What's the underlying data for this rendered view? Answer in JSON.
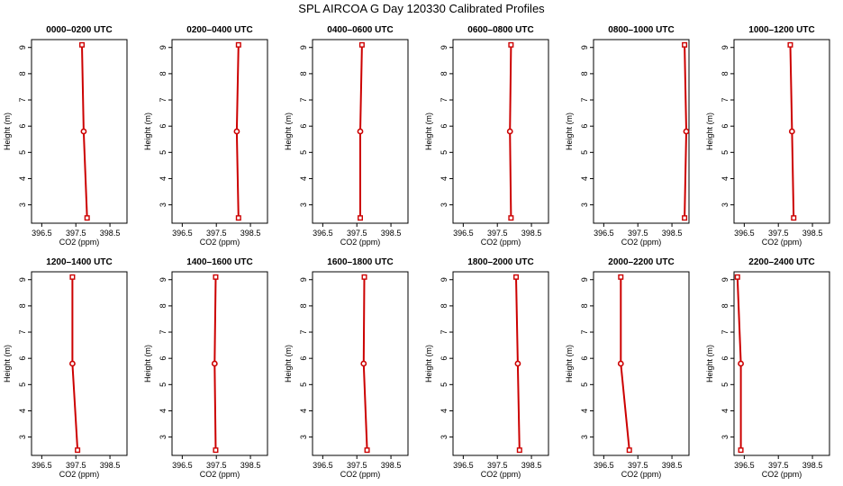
{
  "figure": {
    "title": "SPL AIRCOA G  Day 120330  Calibrated Profiles"
  },
  "chart_data": [
    {
      "type": "line",
      "title": "0000–0200 UTC",
      "xlabel": "CO2 (ppm)",
      "ylabel": "Height (m)",
      "xlim": [
        396.2,
        399.0
      ],
      "ylim": [
        2.3,
        9.3
      ],
      "xticks": [
        396.5,
        397.5,
        398.5
      ],
      "xtick_labels": [
        "396.5",
        "397.5",
        "398.5"
      ],
      "yticks": [
        3,
        4,
        5,
        6,
        7,
        8,
        9
      ],
      "ytick_labels": [
        "3",
        "4",
        "5",
        "6",
        "7",
        "8",
        "9"
      ],
      "color": "#cc0000",
      "points": [
        {
          "x": 397.83,
          "y": 2.5
        },
        {
          "x": 397.73,
          "y": 5.8
        },
        {
          "x": 397.68,
          "y": 9.1
        }
      ]
    },
    {
      "type": "line",
      "title": "0200–0400 UTC",
      "xlabel": "CO2 (ppm)",
      "ylabel": "Height (m)",
      "xlim": [
        396.2,
        399.0
      ],
      "ylim": [
        2.3,
        9.3
      ],
      "xticks": [
        396.5,
        397.5,
        398.5
      ],
      "xtick_labels": [
        "396.5",
        "397.5",
        "398.5"
      ],
      "yticks": [
        3,
        4,
        5,
        6,
        7,
        8,
        9
      ],
      "ytick_labels": [
        "3",
        "4",
        "5",
        "6",
        "7",
        "8",
        "9"
      ],
      "color": "#cc0000",
      "points": [
        {
          "x": 398.15,
          "y": 2.5
        },
        {
          "x": 398.1,
          "y": 5.8
        },
        {
          "x": 398.15,
          "y": 9.1
        }
      ]
    },
    {
      "type": "line",
      "title": "0400–0600 UTC",
      "xlabel": "CO2 (ppm)",
      "ylabel": "Height (m)",
      "xlim": [
        396.2,
        399.0
      ],
      "ylim": [
        2.3,
        9.3
      ],
      "xticks": [
        396.5,
        397.5,
        398.5
      ],
      "xtick_labels": [
        "396.5",
        "397.5",
        "398.5"
      ],
      "yticks": [
        3,
        4,
        5,
        6,
        7,
        8,
        9
      ],
      "ytick_labels": [
        "3",
        "4",
        "5",
        "6",
        "7",
        "8",
        "9"
      ],
      "color": "#cc0000",
      "points": [
        {
          "x": 397.6,
          "y": 2.5
        },
        {
          "x": 397.6,
          "y": 5.8
        },
        {
          "x": 397.65,
          "y": 9.1
        }
      ]
    },
    {
      "type": "line",
      "title": "0600–0800 UTC",
      "xlabel": "CO2 (ppm)",
      "ylabel": "Height (m)",
      "xlim": [
        396.2,
        399.0
      ],
      "ylim": [
        2.3,
        9.3
      ],
      "xticks": [
        396.5,
        397.5,
        398.5
      ],
      "xtick_labels": [
        "396.5",
        "397.5",
        "398.5"
      ],
      "yticks": [
        3,
        4,
        5,
        6,
        7,
        8,
        9
      ],
      "ytick_labels": [
        "3",
        "4",
        "5",
        "6",
        "7",
        "8",
        "9"
      ],
      "color": "#cc0000",
      "points": [
        {
          "x": 397.9,
          "y": 2.5
        },
        {
          "x": 397.87,
          "y": 5.8
        },
        {
          "x": 397.9,
          "y": 9.1
        }
      ]
    },
    {
      "type": "line",
      "title": "0800–1000 UTC",
      "xlabel": "CO2 (ppm)",
      "ylabel": "Height (m)",
      "xlim": [
        396.2,
        399.0
      ],
      "ylim": [
        2.3,
        9.3
      ],
      "xticks": [
        396.5,
        397.5,
        398.5
      ],
      "xtick_labels": [
        "396.5",
        "397.5",
        "398.5"
      ],
      "yticks": [
        3,
        4,
        5,
        6,
        7,
        8,
        9
      ],
      "ytick_labels": [
        "3",
        "4",
        "5",
        "6",
        "7",
        "8",
        "9"
      ],
      "color": "#cc0000",
      "points": [
        {
          "x": 398.87,
          "y": 2.5
        },
        {
          "x": 398.92,
          "y": 5.8
        },
        {
          "x": 398.87,
          "y": 9.1
        }
      ]
    },
    {
      "type": "line",
      "title": "1000–1200 UTC",
      "xlabel": "CO2 (ppm)",
      "ylabel": "Height (m)",
      "xlim": [
        396.2,
        399.0
      ],
      "ylim": [
        2.3,
        9.3
      ],
      "xticks": [
        396.5,
        397.5,
        398.5
      ],
      "xtick_labels": [
        "396.5",
        "397.5",
        "398.5"
      ],
      "yticks": [
        3,
        4,
        5,
        6,
        7,
        8,
        9
      ],
      "ytick_labels": [
        "3",
        "4",
        "5",
        "6",
        "7",
        "8",
        "9"
      ],
      "color": "#cc0000",
      "points": [
        {
          "x": 397.95,
          "y": 2.5
        },
        {
          "x": 397.9,
          "y": 5.8
        },
        {
          "x": 397.85,
          "y": 9.1
        }
      ]
    },
    {
      "type": "line",
      "title": "1200–1400 UTC",
      "xlabel": "CO2 (ppm)",
      "ylabel": "Height (m)",
      "xlim": [
        396.2,
        399.0
      ],
      "ylim": [
        2.3,
        9.3
      ],
      "xticks": [
        396.5,
        397.5,
        398.5
      ],
      "xtick_labels": [
        "396.5",
        "397.5",
        "398.5"
      ],
      "yticks": [
        3,
        4,
        5,
        6,
        7,
        8,
        9
      ],
      "ytick_labels": [
        "3",
        "4",
        "5",
        "6",
        "7",
        "8",
        "9"
      ],
      "color": "#cc0000",
      "points": [
        {
          "x": 397.55,
          "y": 2.5
        },
        {
          "x": 397.4,
          "y": 5.8
        },
        {
          "x": 397.4,
          "y": 9.1
        }
      ]
    },
    {
      "type": "line",
      "title": "1400–1600 UTC",
      "xlabel": "CO2 (ppm)",
      "ylabel": "Height (m)",
      "xlim": [
        396.2,
        399.0
      ],
      "ylim": [
        2.3,
        9.3
      ],
      "xticks": [
        396.5,
        397.5,
        398.5
      ],
      "xtick_labels": [
        "396.5",
        "397.5",
        "398.5"
      ],
      "yticks": [
        3,
        4,
        5,
        6,
        7,
        8,
        9
      ],
      "ytick_labels": [
        "3",
        "4",
        "5",
        "6",
        "7",
        "8",
        "9"
      ],
      "color": "#cc0000",
      "points": [
        {
          "x": 397.48,
          "y": 2.5
        },
        {
          "x": 397.45,
          "y": 5.8
        },
        {
          "x": 397.48,
          "y": 9.1
        }
      ]
    },
    {
      "type": "line",
      "title": "1600–1800 UTC",
      "xlabel": "CO2 (ppm)",
      "ylabel": "Height (m)",
      "xlim": [
        396.2,
        399.0
      ],
      "ylim": [
        2.3,
        9.3
      ],
      "xticks": [
        396.5,
        397.5,
        398.5
      ],
      "xtick_labels": [
        "396.5",
        "397.5",
        "398.5"
      ],
      "yticks": [
        3,
        4,
        5,
        6,
        7,
        8,
        9
      ],
      "ytick_labels": [
        "3",
        "4",
        "5",
        "6",
        "7",
        "8",
        "9"
      ],
      "color": "#cc0000",
      "points": [
        {
          "x": 397.8,
          "y": 2.5
        },
        {
          "x": 397.7,
          "y": 5.8
        },
        {
          "x": 397.72,
          "y": 9.1
        }
      ]
    },
    {
      "type": "line",
      "title": "1800–2000 UTC",
      "xlabel": "CO2 (ppm)",
      "ylabel": "Height (m)",
      "xlim": [
        396.2,
        399.0
      ],
      "ylim": [
        2.3,
        9.3
      ],
      "xticks": [
        396.5,
        397.5,
        398.5
      ],
      "xtick_labels": [
        "396.5",
        "397.5",
        "398.5"
      ],
      "yticks": [
        3,
        4,
        5,
        6,
        7,
        8,
        9
      ],
      "ytick_labels": [
        "3",
        "4",
        "5",
        "6",
        "7",
        "8",
        "9"
      ],
      "color": "#cc0000",
      "points": [
        {
          "x": 398.15,
          "y": 2.5
        },
        {
          "x": 398.1,
          "y": 5.8
        },
        {
          "x": 398.05,
          "y": 9.1
        }
      ]
    },
    {
      "type": "line",
      "title": "2000–2200 UTC",
      "xlabel": "CO2 (ppm)",
      "ylabel": "Height (m)",
      "xlim": [
        396.2,
        399.0
      ],
      "ylim": [
        2.3,
        9.3
      ],
      "xticks": [
        396.5,
        397.5,
        398.5
      ],
      "xtick_labels": [
        "396.5",
        "397.5",
        "398.5"
      ],
      "yticks": [
        3,
        4,
        5,
        6,
        7,
        8,
        9
      ],
      "ytick_labels": [
        "3",
        "4",
        "5",
        "6",
        "7",
        "8",
        "9"
      ],
      "color": "#cc0000",
      "points": [
        {
          "x": 397.25,
          "y": 2.5
        },
        {
          "x": 397.0,
          "y": 5.8
        },
        {
          "x": 397.0,
          "y": 9.1
        }
      ]
    },
    {
      "type": "line",
      "title": "2200–2400 UTC",
      "xlabel": "CO2 (ppm)",
      "ylabel": "Height (m)",
      "xlim": [
        396.2,
        399.0
      ],
      "ylim": [
        2.3,
        9.3
      ],
      "xticks": [
        396.5,
        397.5,
        398.5
      ],
      "xtick_labels": [
        "396.5",
        "397.5",
        "398.5"
      ],
      "yticks": [
        3,
        4,
        5,
        6,
        7,
        8,
        9
      ],
      "ytick_labels": [
        "3",
        "4",
        "5",
        "6",
        "7",
        "8",
        "9"
      ],
      "color": "#cc0000",
      "points": [
        {
          "x": 396.4,
          "y": 2.5
        },
        {
          "x": 396.4,
          "y": 5.8
        },
        {
          "x": 396.3,
          "y": 9.1
        }
      ]
    }
  ]
}
